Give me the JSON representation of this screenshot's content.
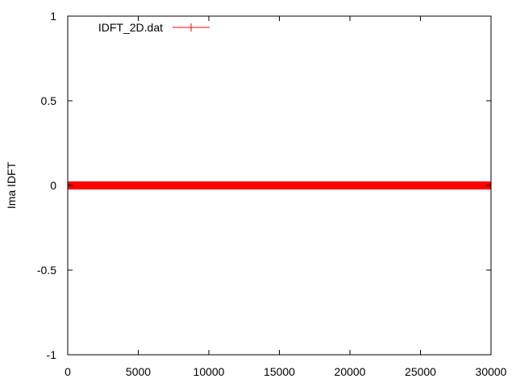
{
  "chart_data": {
    "type": "line",
    "title": "",
    "xlabel": "",
    "ylabel": "Ima IDFT",
    "xlim": [
      0,
      30000
    ],
    "ylim": [
      -1,
      1
    ],
    "x_ticks": [
      0,
      5000,
      10000,
      15000,
      20000,
      25000,
      30000
    ],
    "x_tick_labels": [
      "0",
      "5000",
      "10000",
      "15000",
      "20000",
      "25000",
      "30000"
    ],
    "y_ticks": [
      -1,
      -0.5,
      0,
      0.5,
      1
    ],
    "y_tick_labels": [
      "-1",
      "-0.5",
      "0",
      "0.5",
      "1"
    ],
    "grid": false,
    "legend_position": "top-left",
    "series": [
      {
        "name": "IDFT_2D.dat",
        "color": "#ff0000",
        "marker": "plus",
        "x": [
          0,
          30000
        ],
        "y": [
          0,
          0
        ]
      }
    ]
  }
}
